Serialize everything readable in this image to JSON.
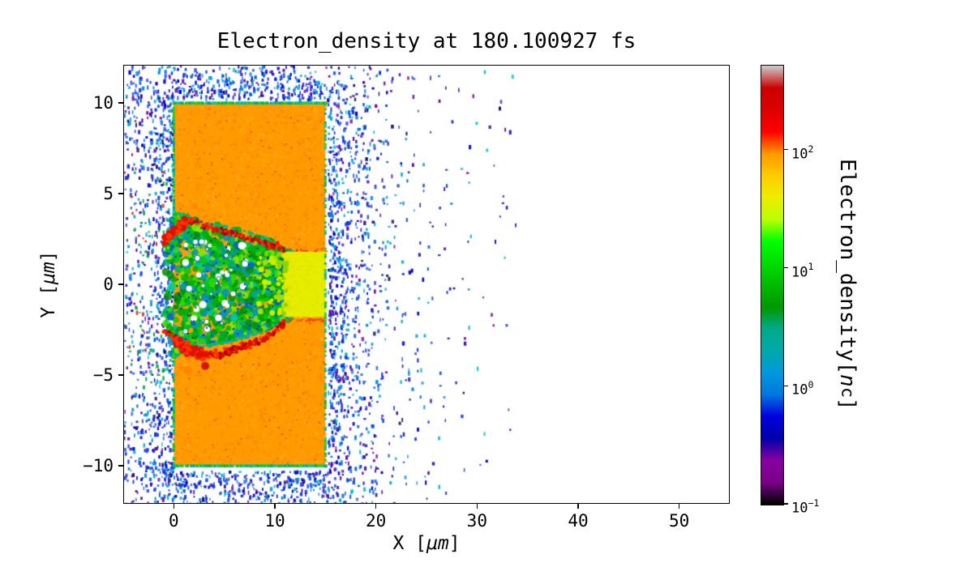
{
  "figure": {
    "background": "#ffffff"
  },
  "chart_data": {
    "type": "heatmap",
    "title": "Electron_density at 180.100927 fs",
    "xlabel": {
      "prefix": "X [",
      "unit": "μm",
      "suffix": "]"
    },
    "ylabel": {
      "prefix": "Y [",
      "unit": "μm",
      "suffix": "]"
    },
    "xlim": [
      -5,
      55
    ],
    "ylim": [
      -12.1,
      12.1
    ],
    "grid": false,
    "legend": "none",
    "xticks": {
      "values": [
        0,
        10,
        20,
        30,
        40,
        50
      ],
      "labels": [
        "0",
        "10",
        "20",
        "30",
        "40",
        "50"
      ]
    },
    "yticks": {
      "values": [
        10,
        5,
        0,
        -5,
        -10
      ],
      "labels": [
        "10",
        "5",
        "0",
        "−5",
        "−10"
      ]
    },
    "colorbar": {
      "label": {
        "text": "Electron_density[",
        "var": "n",
        "sub": "c",
        "close": "]"
      },
      "scale": "log",
      "colormap": "nipy_spectral",
      "vmin": 0.1,
      "vmax_decades": 3.72,
      "ticks": [
        {
          "value": 100,
          "base": "10",
          "exp": "2"
        },
        {
          "value": 10,
          "base": "10",
          "exp": "1"
        },
        {
          "value": 1,
          "base": "10",
          "exp": "0"
        },
        {
          "value": 0.1,
          "base": "10",
          "exp": "−1"
        }
      ],
      "stops": [
        [
          0.0,
          "#000000"
        ],
        [
          0.05,
          "#7a0088"
        ],
        [
          0.1,
          "#8800a0"
        ],
        [
          0.15,
          "#0000aa"
        ],
        [
          0.2,
          "#0000dd"
        ],
        [
          0.25,
          "#0077dd"
        ],
        [
          0.3,
          "#0099dd"
        ],
        [
          0.35,
          "#00aaaa"
        ],
        [
          0.4,
          "#00aa88"
        ],
        [
          0.45,
          "#009900"
        ],
        [
          0.5,
          "#00bb00"
        ],
        [
          0.55,
          "#00dd00"
        ],
        [
          0.6,
          "#00ff00"
        ],
        [
          0.65,
          "#bbff00"
        ],
        [
          0.7,
          "#eeee00"
        ],
        [
          0.75,
          "#ffcc00"
        ],
        [
          0.8,
          "#ff9900"
        ],
        [
          0.85,
          "#ff0000"
        ],
        [
          0.9,
          "#dd0000"
        ],
        [
          0.95,
          "#cc0000"
        ],
        [
          1.0,
          "#cccccc"
        ]
      ]
    },
    "features": {
      "target": {
        "x0": 0,
        "x1": 15,
        "y0": -10,
        "y1": 10,
        "color": "#ff9a00",
        "density_nc": 100
      },
      "channel": {
        "x0": 10.9,
        "x1": 15.05,
        "y0": -1.8,
        "y1": 1.8,
        "color": "#e6ec00",
        "density_nc": 40
      },
      "turbulence": {
        "density_nc": 10,
        "profile": [
          [
            -0.8,
            2.2
          ],
          [
            0,
            4.0
          ],
          [
            1,
            3.8
          ],
          [
            3,
            3.4
          ],
          [
            6,
            3.1
          ],
          [
            9,
            2.6
          ],
          [
            10.5,
            2.1
          ],
          [
            11.8,
            1.8
          ]
        ]
      },
      "filament_top": [
        [
          -0.9,
          2.4
        ],
        [
          0.2,
          3.0
        ],
        [
          1.2,
          3.5
        ],
        [
          2.5,
          3.4
        ],
        [
          4,
          3.05
        ],
        [
          5.5,
          2.85
        ],
        [
          7,
          2.6
        ],
        [
          8.5,
          2.35
        ],
        [
          9.8,
          2.15
        ],
        [
          10.8,
          1.95
        ]
      ],
      "filament_bottom": [
        [
          -0.9,
          -2.5
        ],
        [
          0.3,
          -3.1
        ],
        [
          1.5,
          -3.7
        ],
        [
          3,
          -3.9
        ],
        [
          4.5,
          -3.85
        ],
        [
          6,
          -3.6
        ],
        [
          7.5,
          -3.3
        ],
        [
          9,
          -2.95
        ],
        [
          10.2,
          -2.5
        ],
        [
          10.9,
          -2.1
        ]
      ],
      "blobs": [
        {
          "x": 3.1,
          "y": -4.5,
          "r": 0.4,
          "color": "#dd1100"
        },
        {
          "x": 1.4,
          "y": -4.75,
          "r": 0.45,
          "color": "#ff8800"
        },
        {
          "x": 2.1,
          "y": 4.3,
          "r": 0.3,
          "color": "#ff8800"
        }
      ],
      "noise_extent": {
        "x_max": 34
      }
    }
  }
}
